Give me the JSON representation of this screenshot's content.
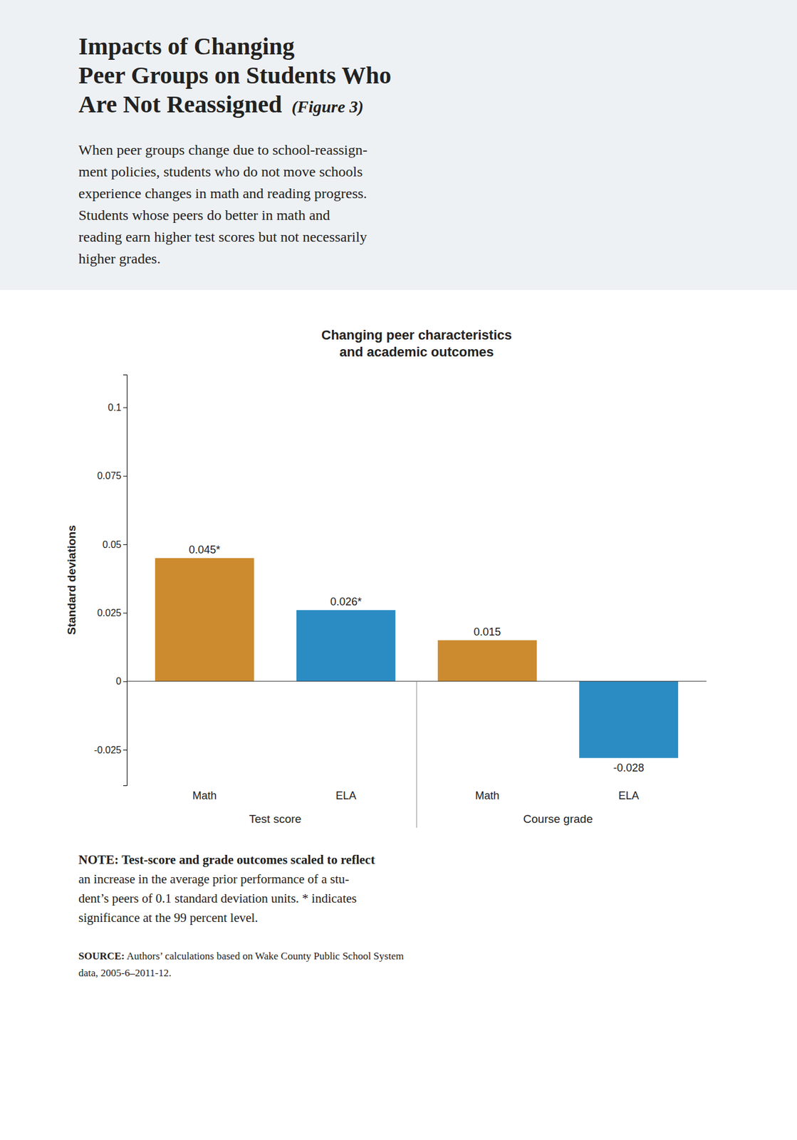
{
  "chart_data": {
    "type": "bar",
    "header_title": [
      "Impacts of Changing",
      "Peer Groups on Students Who",
      "Are Not Reassigned"
    ],
    "figure_ref": "(Figure 3)",
    "subtitle": [
      "When peer groups change due to school-reassign-",
      "ment policies, students who do not move schools",
      "experience changes in math and reading progress.",
      "Students whose peers do better in math and",
      "reading earn higher test scores but not necessarily",
      "higher grades."
    ],
    "title": "Changing peer characteristics\nand academic outcomes",
    "categories": [
      "Math",
      "ELA",
      "Math",
      "ELA"
    ],
    "group_labels": [
      "Test score",
      "Course grade"
    ],
    "values": [
      0.045,
      0.026,
      0.015,
      -0.028
    ],
    "value_labels": [
      "0.045*",
      "0.026*",
      "0.015",
      "-0.028"
    ],
    "data_labels": true,
    "colors": [
      "#CC8B2F",
      "#2B8CC4",
      "#CC8B2F",
      "#2B8CC4"
    ],
    "ylabel": "Standard deviations",
    "ylim": [
      -0.038,
      0.112
    ],
    "yticks": [
      -0.025,
      0,
      0.025,
      0.05,
      0.075,
      0.1
    ],
    "grid": false,
    "note": [
      "NOTE: Test-score and grade outcomes scaled to reflect",
      "an increase in the average prior performance of a stu-",
      "dent’s peers of 0.1 standard deviation units. * indicates",
      "significance at the 99 percent level."
    ],
    "source": [
      "SOURCE:",
      " Authors’ calculations based on Wake County Public School System",
      "data, 2005-6–2011-12."
    ]
  }
}
